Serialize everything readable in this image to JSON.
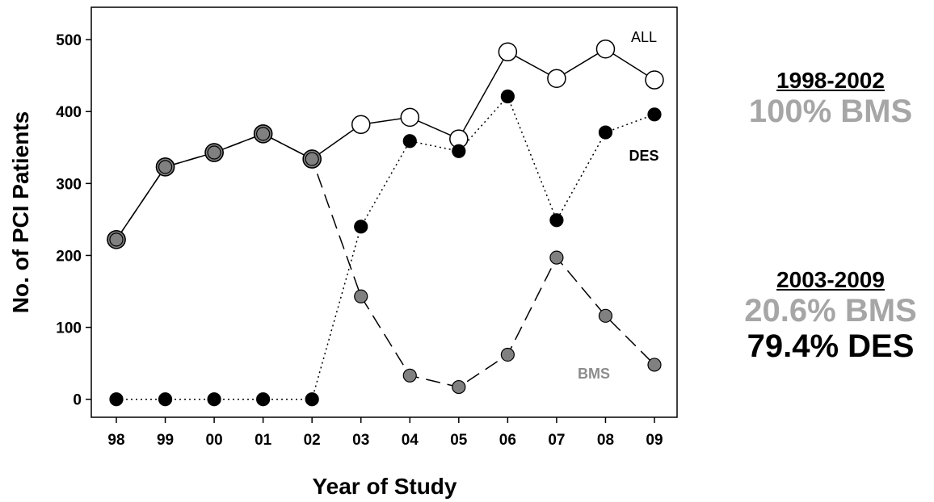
{
  "chart_data": {
    "type": "line",
    "xlabel": "Year of Study",
    "ylabel": "No. of PCI Patients",
    "categories": [
      "98",
      "99",
      "00",
      "01",
      "02",
      "03",
      "04",
      "05",
      "06",
      "07",
      "08",
      "09"
    ],
    "ylim": [
      -25,
      545
    ],
    "yticks": [
      0,
      100,
      200,
      300,
      400,
      500
    ],
    "grid": false,
    "series": [
      {
        "name": "ALL",
        "values": [
          222,
          323,
          343,
          369,
          334,
          382,
          392,
          362,
          483,
          446,
          487,
          444
        ],
        "line_style": "solid",
        "marker_fill": "#ffffff",
        "label_color": "#000000"
      },
      {
        "name": "DES",
        "values": [
          0,
          0,
          0,
          0,
          0,
          240,
          359,
          345,
          421,
          249,
          371,
          396
        ],
        "line_style": "dotted",
        "marker_fill": "#000000",
        "label_color": "#000000"
      },
      {
        "name": "BMS",
        "values": [
          222,
          323,
          343,
          369,
          334,
          143,
          33,
          17,
          62,
          197,
          116,
          48
        ],
        "line_style": "dashed",
        "marker_fill": "#808080",
        "label_color": "#8c8c8c"
      }
    ]
  },
  "stats": [
    {
      "period": "1998-2002",
      "lines": [
        {
          "text": "100% BMS",
          "color": "#a6a6a6"
        }
      ]
    },
    {
      "period": "2003-2009",
      "lines": [
        {
          "text": "20.6% BMS",
          "color": "#a6a6a6"
        },
        {
          "text": "79.4% DES",
          "color": "#000000"
        }
      ]
    }
  ],
  "colors": {
    "axis": "#000000",
    "bms_text": "#a6a6a6",
    "des_text": "#000000"
  }
}
